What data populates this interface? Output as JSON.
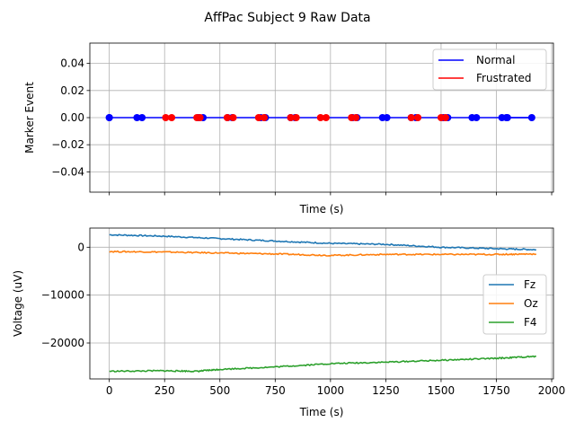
{
  "suptitle": "AffPac Subject 9 Raw Data",
  "chart_data": [
    {
      "type": "line",
      "xlabel": "Time (s)",
      "ylabel": "Marker Event",
      "xlim": [
        -88,
        2008
      ],
      "ylim": [
        -0.055,
        0.055
      ],
      "xticks": [
        0,
        250,
        500,
        750,
        1000,
        1250,
        1500,
        1750,
        2000
      ],
      "xticks_labeled": false,
      "yticks": [
        0.04,
        0.02,
        0.0,
        -0.02,
        -0.04
      ],
      "ytick_labels": [
        "0.04",
        "0.02",
        "0.00",
        "−0.02",
        "−0.04"
      ],
      "grid": true,
      "legend_position": "top-right",
      "series": [
        {
          "name": "Normal",
          "color": "#0000ff",
          "marker": "circle",
          "segments": [
            [
              0,
              0
            ],
            [
              125,
              148
            ],
            [
              403,
              424
            ],
            [
              535,
              556
            ],
            [
              685,
              706
            ],
            [
              820,
              840
            ],
            [
              1100,
              1120
            ],
            [
              1235,
              1255
            ],
            [
              1365,
              1386
            ],
            [
              1510,
              1530
            ],
            [
              1640,
              1660
            ],
            [
              1775,
              1795
            ],
            [
              1800,
              1910
            ]
          ]
        },
        {
          "name": "Frustrated",
          "color": "#ff0000",
          "marker": "circle",
          "segments": [
            [
              255,
              282
            ],
            [
              396,
              410
            ],
            [
              533,
              560
            ],
            [
              675,
              700
            ],
            [
              820,
              845
            ],
            [
              955,
              980
            ],
            [
              1095,
              1115
            ],
            [
              1365,
              1395
            ],
            [
              1500,
              1520
            ]
          ]
        }
      ]
    },
    {
      "type": "line",
      "xlabel": "Time (s)",
      "ylabel": "Voltage (uV)",
      "xlim": [
        -88,
        2008
      ],
      "ylim": [
        -27500,
        4000
      ],
      "xticks": [
        0,
        250,
        500,
        750,
        1000,
        1250,
        1500,
        1750,
        2000
      ],
      "xtick_labels": [
        "0",
        "250",
        "500",
        "750",
        "1000",
        "1250",
        "1500",
        "1750",
        "2000"
      ],
      "yticks": [
        0,
        -10000,
        -20000
      ],
      "ytick_labels": [
        "0",
        "−10000",
        "−20000"
      ],
      "grid": true,
      "legend_position": "center-right",
      "series": [
        {
          "name": "Fz",
          "color": "#1f77b4",
          "x": [
            0,
            250,
            500,
            750,
            1000,
            1250,
            1500,
            1750,
            1930
          ],
          "y": [
            2600,
            2300,
            1800,
            1300,
            800,
            600,
            0,
            -300,
            -500
          ]
        },
        {
          "name": "Oz",
          "color": "#ff7f0e",
          "x": [
            0,
            250,
            500,
            750,
            1000,
            1250,
            1500,
            1750,
            1930
          ],
          "y": [
            -900,
            -1000,
            -1200,
            -1400,
            -1700,
            -1500,
            -1500,
            -1500,
            -1400
          ]
        },
        {
          "name": "F4",
          "color": "#2ca02c",
          "x": [
            0,
            250,
            400,
            500,
            750,
            1000,
            1250,
            1500,
            1750,
            1930
          ],
          "y": [
            -25900,
            -25800,
            -25900,
            -25500,
            -25000,
            -24300,
            -24000,
            -23600,
            -23200,
            -22800
          ]
        }
      ]
    }
  ]
}
